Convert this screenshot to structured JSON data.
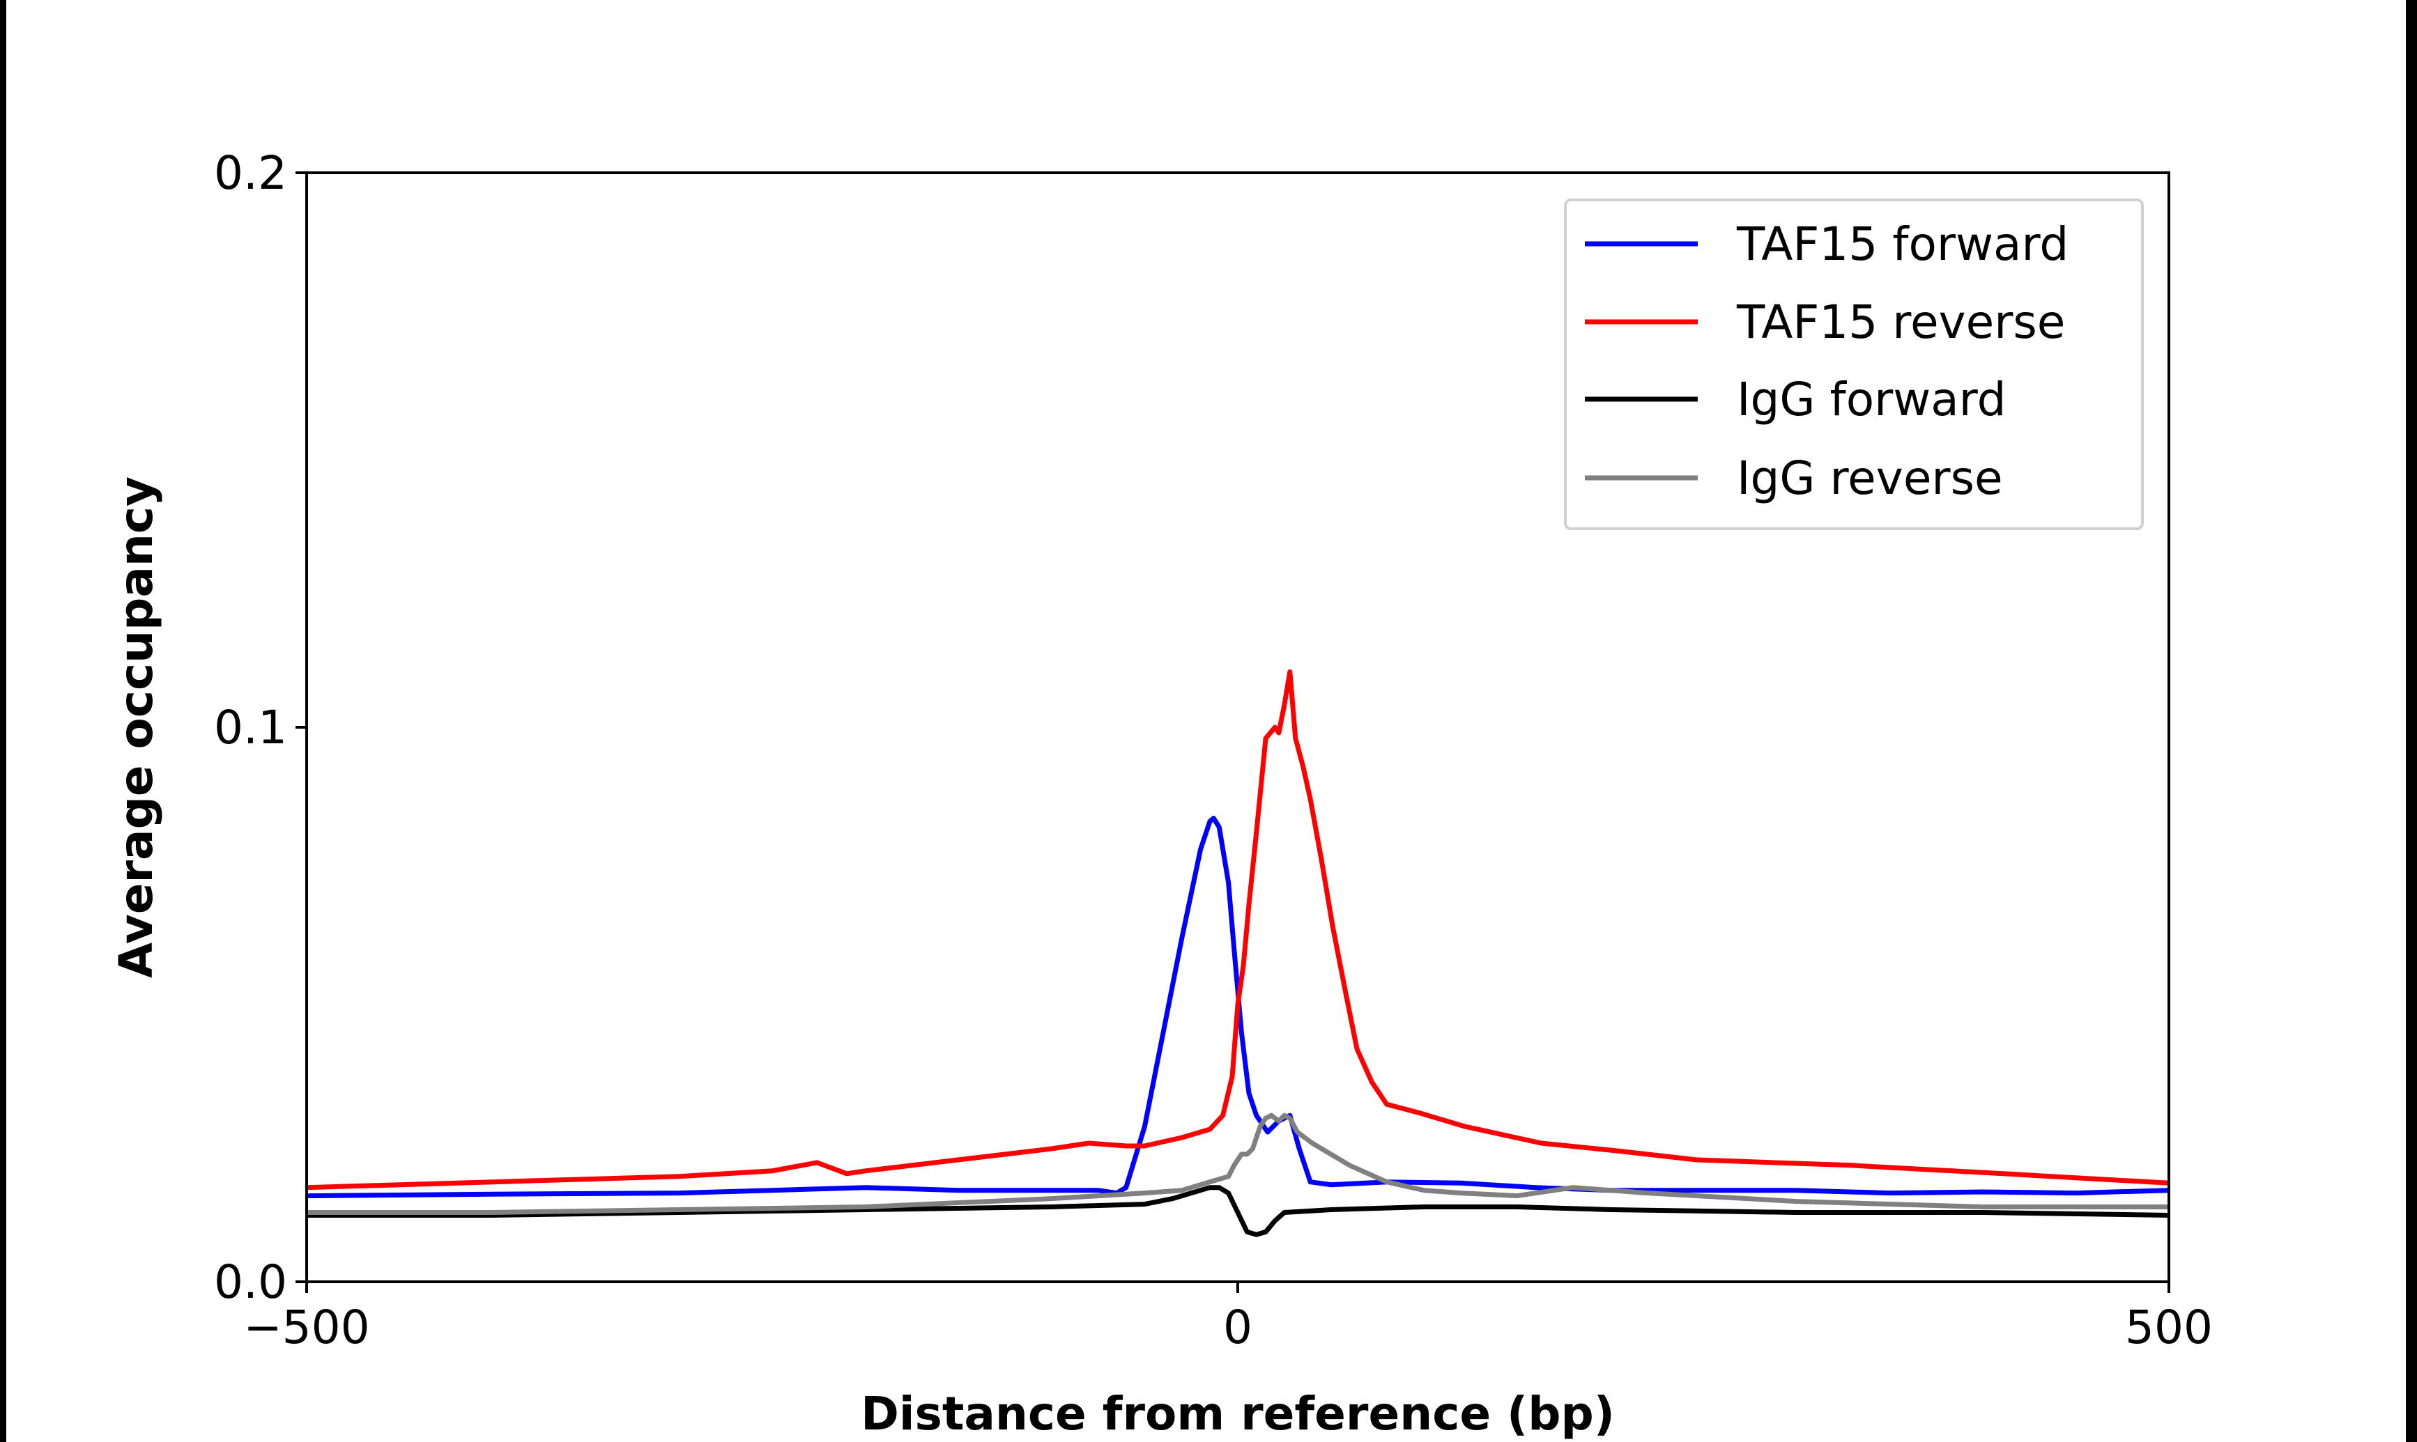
{
  "chart_data": {
    "type": "line",
    "title": "",
    "xlabel": "Distance from reference (bp)",
    "ylabel": "Average occupancy",
    "xlim": [
      -500,
      500
    ],
    "ylim": [
      0,
      0.2
    ],
    "xticks": [
      -500,
      0,
      500
    ],
    "xtick_labels": [
      "−500",
      "0",
      "500"
    ],
    "yticks": [
      0,
      0.1,
      0.2
    ],
    "ytick_labels": [
      "0.0",
      "0.1",
      "0.2"
    ],
    "grid": false,
    "legend_position": "top-right",
    "series": [
      {
        "name": "TAF15 forward",
        "color": "#0000ff",
        "x": [
          -500,
          -400,
          -300,
          -250,
          -200,
          -150,
          -100,
          -75,
          -65,
          -60,
          -50,
          -40,
          -30,
          -20,
          -15,
          -13,
          -10,
          -5,
          -2,
          2,
          6,
          10,
          16,
          22,
          28,
          33,
          39,
          50,
          80,
          120,
          160,
          200,
          250,
          300,
          350,
          400,
          450,
          500
        ],
        "y": [
          0.0155,
          0.0158,
          0.016,
          0.0165,
          0.017,
          0.0165,
          0.0165,
          0.0165,
          0.016,
          0.017,
          0.028,
          0.045,
          0.062,
          0.078,
          0.083,
          0.0836,
          0.082,
          0.072,
          0.06,
          0.045,
          0.034,
          0.03,
          0.027,
          0.029,
          0.03,
          0.024,
          0.018,
          0.0175,
          0.018,
          0.0178,
          0.017,
          0.0165,
          0.0165,
          0.0165,
          0.016,
          0.0162,
          0.016,
          0.0165
        ]
      },
      {
        "name": "TAF15 reverse",
        "color": "#ff0000",
        "x": [
          -500,
          -450,
          -400,
          -350,
          -300,
          -250,
          -226,
          -210,
          -200,
          -150,
          -100,
          -80,
          -60,
          -50,
          -30,
          -15,
          -8,
          -3,
          0,
          3,
          6,
          10,
          15,
          20,
          22,
          25,
          28,
          31,
          35,
          39,
          45,
          51,
          58,
          64,
          72,
          80,
          97,
          122,
          163,
          204,
          246,
          329,
          411,
          500
        ],
        "y": [
          0.017,
          0.0175,
          0.018,
          0.0185,
          0.019,
          0.02,
          0.0215,
          0.0195,
          0.02,
          0.022,
          0.024,
          0.025,
          0.0245,
          0.0245,
          0.026,
          0.0275,
          0.03,
          0.037,
          0.05,
          0.057,
          0.068,
          0.081,
          0.098,
          0.1,
          0.099,
          0.104,
          0.11,
          0.098,
          0.093,
          0.087,
          0.076,
          0.064,
          0.052,
          0.042,
          0.036,
          0.032,
          0.0305,
          0.028,
          0.025,
          0.0236,
          0.022,
          0.021,
          0.0195,
          0.0178
        ]
      },
      {
        "name": "IgG forward",
        "color": "#000000",
        "x": [
          -500,
          -400,
          -300,
          -200,
          -100,
          -50,
          -35,
          -25,
          -15,
          -10,
          -5,
          0,
          5,
          10,
          15,
          20,
          25,
          50,
          100,
          150,
          200,
          300,
          400,
          500
        ],
        "y": [
          0.012,
          0.012,
          0.0125,
          0.013,
          0.0135,
          0.014,
          0.015,
          0.016,
          0.017,
          0.017,
          0.016,
          0.0125,
          0.009,
          0.0085,
          0.009,
          0.011,
          0.0125,
          0.013,
          0.0135,
          0.0135,
          0.013,
          0.0125,
          0.0125,
          0.012
        ]
      },
      {
        "name": "IgG reverse",
        "color": "#808080",
        "x": [
          -500,
          -400,
          -300,
          -200,
          -100,
          -50,
          -30,
          -20,
          -10,
          -5,
          -2,
          2,
          5,
          8,
          12,
          15,
          18,
          22,
          25,
          28,
          32,
          40,
          50,
          60,
          80,
          100,
          120,
          150,
          180,
          220,
          300,
          400,
          500
        ],
        "y": [
          0.0125,
          0.0125,
          0.013,
          0.0135,
          0.015,
          0.016,
          0.0165,
          0.0175,
          0.0185,
          0.019,
          0.021,
          0.023,
          0.023,
          0.024,
          0.028,
          0.0295,
          0.03,
          0.029,
          0.03,
          0.0295,
          0.027,
          0.025,
          0.023,
          0.021,
          0.018,
          0.0165,
          0.016,
          0.0155,
          0.017,
          0.016,
          0.0145,
          0.0135,
          0.0135
        ]
      }
    ]
  }
}
